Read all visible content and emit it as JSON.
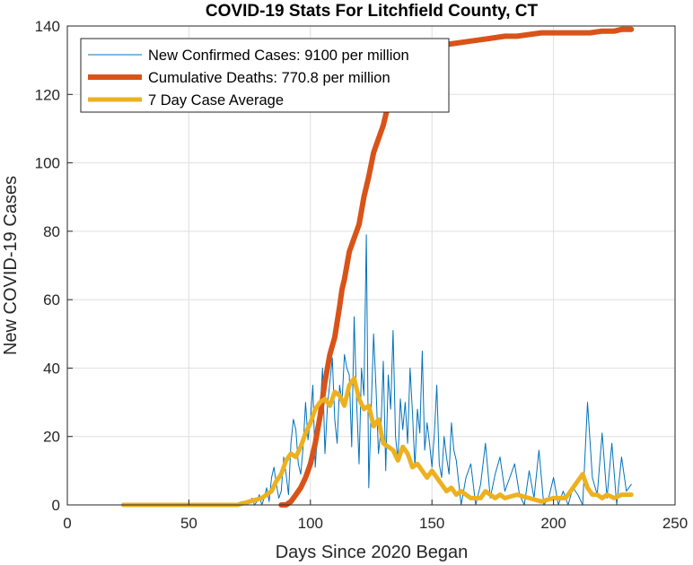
{
  "chart_data": {
    "type": "line",
    "title": "COVID-19 Stats For Litchfield County, CT",
    "xlabel": "Days Since 2020 Began",
    "ylabel": "New COVID-19 Cases",
    "xlim": [
      0,
      250
    ],
    "ylim": [
      0,
      140
    ],
    "xticks": [
      "0",
      "50",
      "100",
      "150",
      "200",
      "250"
    ],
    "yticks": [
      "0",
      "20",
      "40",
      "60",
      "80",
      "100",
      "120",
      "140"
    ],
    "grid": true,
    "legend_position": "top-left",
    "series": [
      {
        "name": "New Confirmed Cases: 9100 per million",
        "color": "#0072BD",
        "style": "thin",
        "x": [
          23,
          40,
          60,
          68,
          72,
          74,
          75,
          76,
          77,
          78,
          79,
          80,
          81,
          82,
          83,
          84,
          85,
          86,
          87,
          88,
          89,
          90,
          91,
          92,
          93,
          94,
          95,
          96,
          97,
          98,
          99,
          100,
          101,
          102,
          103,
          104,
          105,
          106,
          107,
          108,
          109,
          110,
          111,
          112,
          113,
          114,
          115,
          116,
          117,
          118,
          119,
          120,
          121,
          122,
          123,
          124,
          125,
          126,
          127,
          128,
          129,
          130,
          131,
          132,
          133,
          134,
          135,
          136,
          137,
          138,
          139,
          140,
          141,
          142,
          143,
          144,
          145,
          146,
          147,
          148,
          149,
          150,
          151,
          152,
          153,
          154,
          155,
          156,
          157,
          158,
          159,
          160,
          162,
          164,
          166,
          168,
          170,
          172,
          174,
          176,
          178,
          180,
          182,
          184,
          186,
          188,
          190,
          192,
          194,
          196,
          198,
          200,
          202,
          204,
          206,
          208,
          210,
          212,
          214,
          216,
          218,
          220,
          222,
          224,
          226,
          228,
          230,
          232
        ],
        "y": [
          0,
          0,
          0,
          0,
          1,
          0,
          1,
          2,
          0,
          1,
          3,
          0,
          2,
          5,
          1,
          8,
          11,
          6,
          2,
          4,
          14,
          9,
          3,
          18,
          25,
          22,
          12,
          9,
          17,
          30,
          19,
          25,
          35,
          11,
          22,
          28,
          40,
          15,
          29,
          36,
          43,
          25,
          18,
          35,
          30,
          44,
          40,
          38,
          17,
          55,
          30,
          12,
          40,
          32,
          79,
          5,
          28,
          50,
          34,
          15,
          22,
          42,
          10,
          38,
          28,
          51,
          20,
          13,
          31,
          22,
          30,
          18,
          40,
          27,
          11,
          28,
          21,
          45,
          16,
          24,
          18,
          11,
          21,
          35,
          12,
          8,
          20,
          14,
          9,
          24,
          16,
          13,
          0,
          8,
          12,
          0,
          6,
          18,
          2,
          9,
          14,
          4,
          8,
          12,
          3,
          0,
          10,
          2,
          16,
          0,
          2,
          8,
          0,
          4,
          0,
          5,
          3,
          0,
          30,
          8,
          3,
          21,
          2,
          18,
          0,
          14,
          4,
          6
        ]
      },
      {
        "name": "Cumulative Deaths: 770.8 per million",
        "color": "#D95319",
        "style": "thick",
        "x": [
          88,
          90,
          92,
          94,
          96,
          98,
          100,
          102,
          104,
          106,
          108,
          110,
          112,
          113,
          114,
          116,
          118,
          120,
          121,
          122,
          124,
          126,
          128,
          130,
          132,
          134,
          136,
          138,
          140,
          142,
          144,
          146,
          148,
          150,
          155,
          160,
          165,
          170,
          175,
          180,
          185,
          190,
          195,
          200,
          205,
          210,
          215,
          220,
          225,
          228,
          230,
          232
        ],
        "y": [
          0,
          0,
          1,
          3,
          5,
          8,
          12,
          18,
          26,
          36,
          44,
          49,
          58,
          63,
          66,
          74,
          78,
          82,
          86,
          90,
          96,
          103,
          107,
          111,
          117,
          123,
          126,
          128,
          130,
          131,
          132,
          133,
          133.5,
          134,
          134.5,
          135,
          135.5,
          136,
          136.5,
          137,
          137,
          137.5,
          138,
          138,
          138,
          138,
          138,
          138.5,
          138.5,
          139,
          139,
          139
        ]
      },
      {
        "name": "7 Day Case Average",
        "color": "#EDB120",
        "style": "medium",
        "x": [
          23,
          40,
          60,
          70,
          75,
          80,
          84,
          86,
          88,
          90,
          92,
          94,
          96,
          98,
          100,
          102,
          104,
          106,
          108,
          110,
          112,
          114,
          116,
          118,
          120,
          122,
          124,
          126,
          128,
          130,
          132,
          134,
          136,
          138,
          140,
          142,
          144,
          146,
          148,
          150,
          152,
          154,
          156,
          158,
          160,
          162,
          164,
          166,
          168,
          170,
          172,
          174,
          176,
          178,
          180,
          185,
          190,
          195,
          200,
          205,
          208,
          210,
          212,
          214,
          216,
          218,
          220,
          222,
          225,
          228,
          230,
          232
        ],
        "y": [
          0,
          0,
          0,
          0,
          1,
          2,
          4,
          7,
          9,
          13,
          15,
          14,
          17,
          21,
          24,
          28,
          30,
          31,
          29,
          33,
          32,
          29,
          35,
          37,
          31,
          28,
          29,
          23,
          25,
          18,
          17,
          16,
          13,
          17,
          15,
          11,
          12,
          10,
          8,
          10,
          8,
          6,
          4,
          5,
          3,
          4,
          3,
          2,
          2,
          2,
          4,
          3,
          2,
          3,
          2,
          3,
          2,
          1,
          2,
          2,
          5,
          7,
          9,
          5,
          3,
          3,
          2,
          3,
          2,
          3,
          3,
          3
        ]
      }
    ]
  }
}
